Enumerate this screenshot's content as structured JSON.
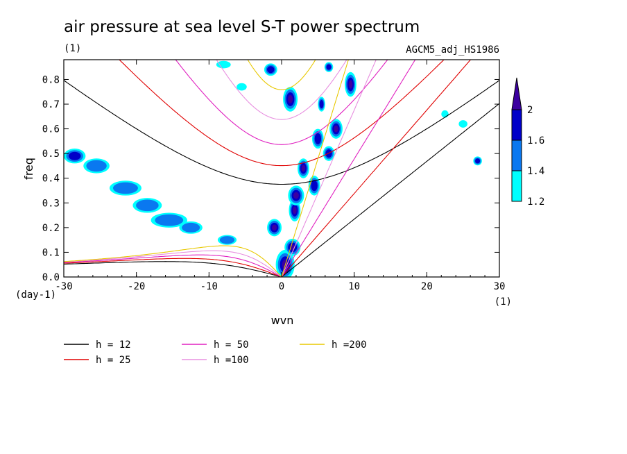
{
  "chart_data": {
    "type": "contour",
    "title": "air pressure at sea level S-T power spectrum",
    "title_units": "(1)",
    "subtitle": "AGCM5_adj_HS1986",
    "xlabel": "wvn",
    "x_units": "(1)",
    "ylabel": "freq",
    "y_units": "(day-1)",
    "xlim": [
      -30,
      30
    ],
    "ylim": [
      0,
      0.88
    ],
    "x_ticks": [
      -30,
      -20,
      -10,
      0,
      10,
      20,
      30
    ],
    "x_tick_labels": [
      "-30",
      "-20",
      "-10",
      "0",
      "10",
      "20",
      "30"
    ],
    "y_ticks": [
      0,
      0.1,
      0.2,
      0.3,
      0.4,
      0.5,
      0.6,
      0.7,
      0.8
    ],
    "y_tick_labels": [
      "0.0",
      "0.1",
      "0.2",
      "0.3",
      "0.4",
      "0.5",
      "0.6",
      "0.7",
      "0.8"
    ],
    "colorbar": {
      "levels": [
        1.2,
        1.4,
        1.6,
        2
      ],
      "level_labels": [
        "1.2",
        "1.4",
        "1.6",
        "2"
      ],
      "colors": [
        "#00ffff",
        "#0a78f0",
        "#0000c8",
        "#3c00a0"
      ]
    },
    "dispersion_curves": [
      {
        "name": "h = 12",
        "h": 12,
        "color": "#000000"
      },
      {
        "name": "h = 25",
        "h": 25,
        "color": "#e00000"
      },
      {
        "name": "h = 50",
        "h": 50,
        "color": "#e020c0"
      },
      {
        "name": "h =100",
        "h": 100,
        "color": "#e890e0"
      },
      {
        "name": "h =200",
        "h": 200,
        "color": "#e8c800"
      }
    ],
    "blobs": [
      {
        "x": 0.5,
        "y": 0.05,
        "rx": 1.3,
        "ry": 0.06,
        "level": 3
      },
      {
        "x": 1.5,
        "y": 0.12,
        "rx": 1.1,
        "ry": 0.035,
        "level": 3
      },
      {
        "x": -1.0,
        "y": 0.2,
        "rx": 1.0,
        "ry": 0.035,
        "level": 3
      },
      {
        "x": 1.8,
        "y": 0.27,
        "rx": 0.8,
        "ry": 0.045,
        "level": 3
      },
      {
        "x": 2.0,
        "y": 0.33,
        "rx": 1.1,
        "ry": 0.04,
        "level": 3
      },
      {
        "x": 3.0,
        "y": 0.44,
        "rx": 0.8,
        "ry": 0.04,
        "level": 3
      },
      {
        "x": 4.5,
        "y": 0.37,
        "rx": 0.8,
        "ry": 0.04,
        "level": 2
      },
      {
        "x": 5.0,
        "y": 0.56,
        "rx": 0.8,
        "ry": 0.04,
        "level": 2
      },
      {
        "x": 6.5,
        "y": 0.5,
        "rx": 0.8,
        "ry": 0.03,
        "level": 2
      },
      {
        "x": 7.5,
        "y": 0.6,
        "rx": 0.9,
        "ry": 0.04,
        "level": 3
      },
      {
        "x": 9.5,
        "y": 0.78,
        "rx": 0.8,
        "ry": 0.05,
        "level": 3
      },
      {
        "x": 1.2,
        "y": 0.72,
        "rx": 1.0,
        "ry": 0.05,
        "level": 3
      },
      {
        "x": 5.5,
        "y": 0.7,
        "rx": 0.5,
        "ry": 0.03,
        "level": 2
      },
      {
        "x": -1.5,
        "y": 0.84,
        "rx": 0.9,
        "ry": 0.025,
        "level": 2
      },
      {
        "x": 6.5,
        "y": 0.85,
        "rx": 0.6,
        "ry": 0.02,
        "level": 2
      },
      {
        "x": -28.5,
        "y": 0.49,
        "rx": 1.5,
        "ry": 0.03,
        "level": 2
      },
      {
        "x": -25.5,
        "y": 0.45,
        "rx": 1.8,
        "ry": 0.03,
        "level": 1
      },
      {
        "x": -21.5,
        "y": 0.36,
        "rx": 2.2,
        "ry": 0.03,
        "level": 1
      },
      {
        "x": -18.5,
        "y": 0.29,
        "rx": 2.0,
        "ry": 0.03,
        "level": 1
      },
      {
        "x": -15.5,
        "y": 0.23,
        "rx": 2.5,
        "ry": 0.03,
        "level": 1
      },
      {
        "x": -12.5,
        "y": 0.2,
        "rx": 1.6,
        "ry": 0.025,
        "level": 1
      },
      {
        "x": -7.5,
        "y": 0.15,
        "rx": 1.3,
        "ry": 0.02,
        "level": 1
      },
      {
        "x": -8.0,
        "y": 0.86,
        "rx": 1.0,
        "ry": 0.015,
        "level": 0
      },
      {
        "x": -5.5,
        "y": 0.77,
        "rx": 0.7,
        "ry": 0.015,
        "level": 0
      },
      {
        "x": 22.5,
        "y": 0.66,
        "rx": 0.5,
        "ry": 0.015,
        "level": 0
      },
      {
        "x": 27.0,
        "y": 0.47,
        "rx": 0.6,
        "ry": 0.018,
        "level": 2
      },
      {
        "x": 25.0,
        "y": 0.62,
        "rx": 0.6,
        "ry": 0.015,
        "level": 0
      }
    ]
  }
}
